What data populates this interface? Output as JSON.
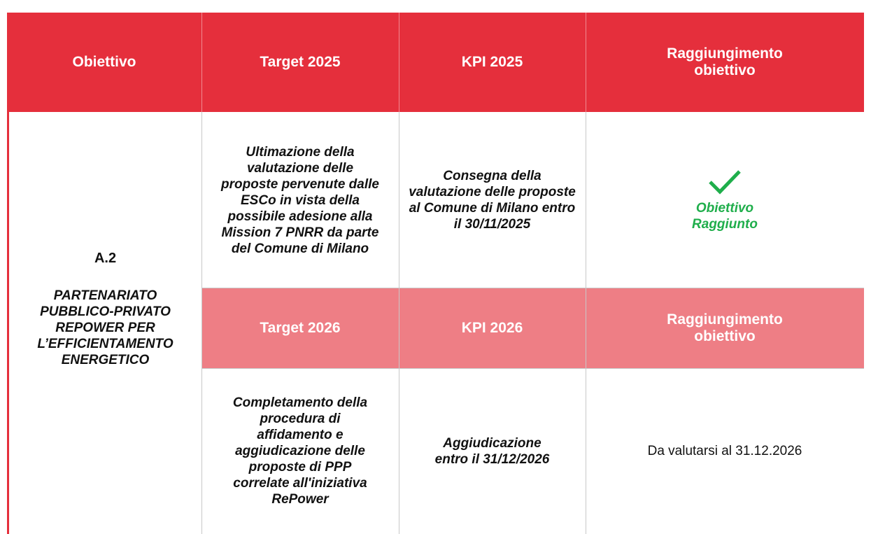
{
  "header": [
    "Obiettivo",
    "Target 2025",
    "KPI 2025",
    "Raggiungimento obiettivo"
  ],
  "objective": {
    "code": "A.2",
    "name": "PARTENARIATO PUBBLICO-PRIVATO REPOWER PER L’EFFICIENTAMENTO ENERGETICO"
  },
  "row_2025": {
    "target": "Ultimazione della valutazione delle proposte pervenute dalle ESCo in vista della possibile adesione alla Mission 7 PNRR da parte del Comune di Milano",
    "kpi": "Consegna della valutazione delle proposte al Comune di Milano entro il 30/11/2025",
    "status": "Obiettivo Raggiunto"
  },
  "subheader": [
    "Target 2026",
    "KPI 2026",
    "Raggiungimento obiettivo"
  ],
  "row_2026": {
    "target": "Completamento della procedura di affidamento e aggiudicazione delle proposte di PPP correlate all'iniziativa RePower",
    "kpi": "Aggiudicazione entro il 31/12/2026",
    "status": "Da valutarsi al 31.12.2026"
  }
}
